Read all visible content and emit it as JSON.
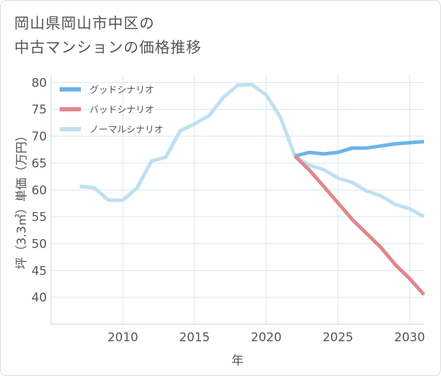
{
  "title_lines": [
    "岡山県岡山市中区の",
    "中古マンションの価格推移"
  ],
  "chart_data": {
    "type": "line",
    "title": "岡山県岡山市中区の中古マンションの価格推移",
    "xlabel": "年",
    "ylabel": "坪（3.3㎡）単価（万円）",
    "xlim": [
      2005,
      2031
    ],
    "ylim": [
      35,
      81.5
    ],
    "xticks": [
      2010,
      2015,
      2020,
      2025,
      2030
    ],
    "yticks": [
      40,
      45,
      50,
      55,
      60,
      65,
      70,
      75,
      80
    ],
    "grid": true,
    "legend_position": "top-left",
    "series": [
      {
        "name": "グッドシナリオ",
        "color": "#6cb4ea",
        "x": [
          2022,
          2023,
          2024,
          2025,
          2026,
          2027,
          2028,
          2029,
          2030,
          2031
        ],
        "y": [
          66.3,
          67.0,
          66.7,
          67.0,
          67.8,
          67.8,
          68.2,
          68.6,
          68.8,
          69.0
        ]
      },
      {
        "name": "バッドシナリオ",
        "color": "#e0868f",
        "x": [
          2022,
          2023,
          2024,
          2025,
          2026,
          2027,
          2028,
          2029,
          2030,
          2031
        ],
        "y": [
          66.3,
          63.7,
          60.7,
          57.6,
          54.5,
          51.9,
          49.3,
          46.1,
          43.5,
          40.5
        ]
      },
      {
        "name": "ノーマルシナリオ",
        "color": "#bfe0f0",
        "x": [
          2007,
          2008,
          2009,
          2010,
          2011,
          2012,
          2013,
          2014,
          2015,
          2016,
          2017,
          2018,
          2019,
          2020,
          2021,
          2022,
          2023,
          2024,
          2025,
          2026,
          2027,
          2028,
          2029,
          2030,
          2031
        ],
        "y": [
          60.7,
          60.4,
          58.1,
          58.1,
          60.4,
          65.4,
          66.1,
          71.0,
          72.3,
          73.8,
          77.2,
          79.5,
          79.6,
          77.7,
          73.5,
          66.3,
          64.6,
          63.8,
          62.2,
          61.4,
          59.8,
          58.9,
          57.3,
          56.5,
          55.0
        ]
      }
    ]
  }
}
